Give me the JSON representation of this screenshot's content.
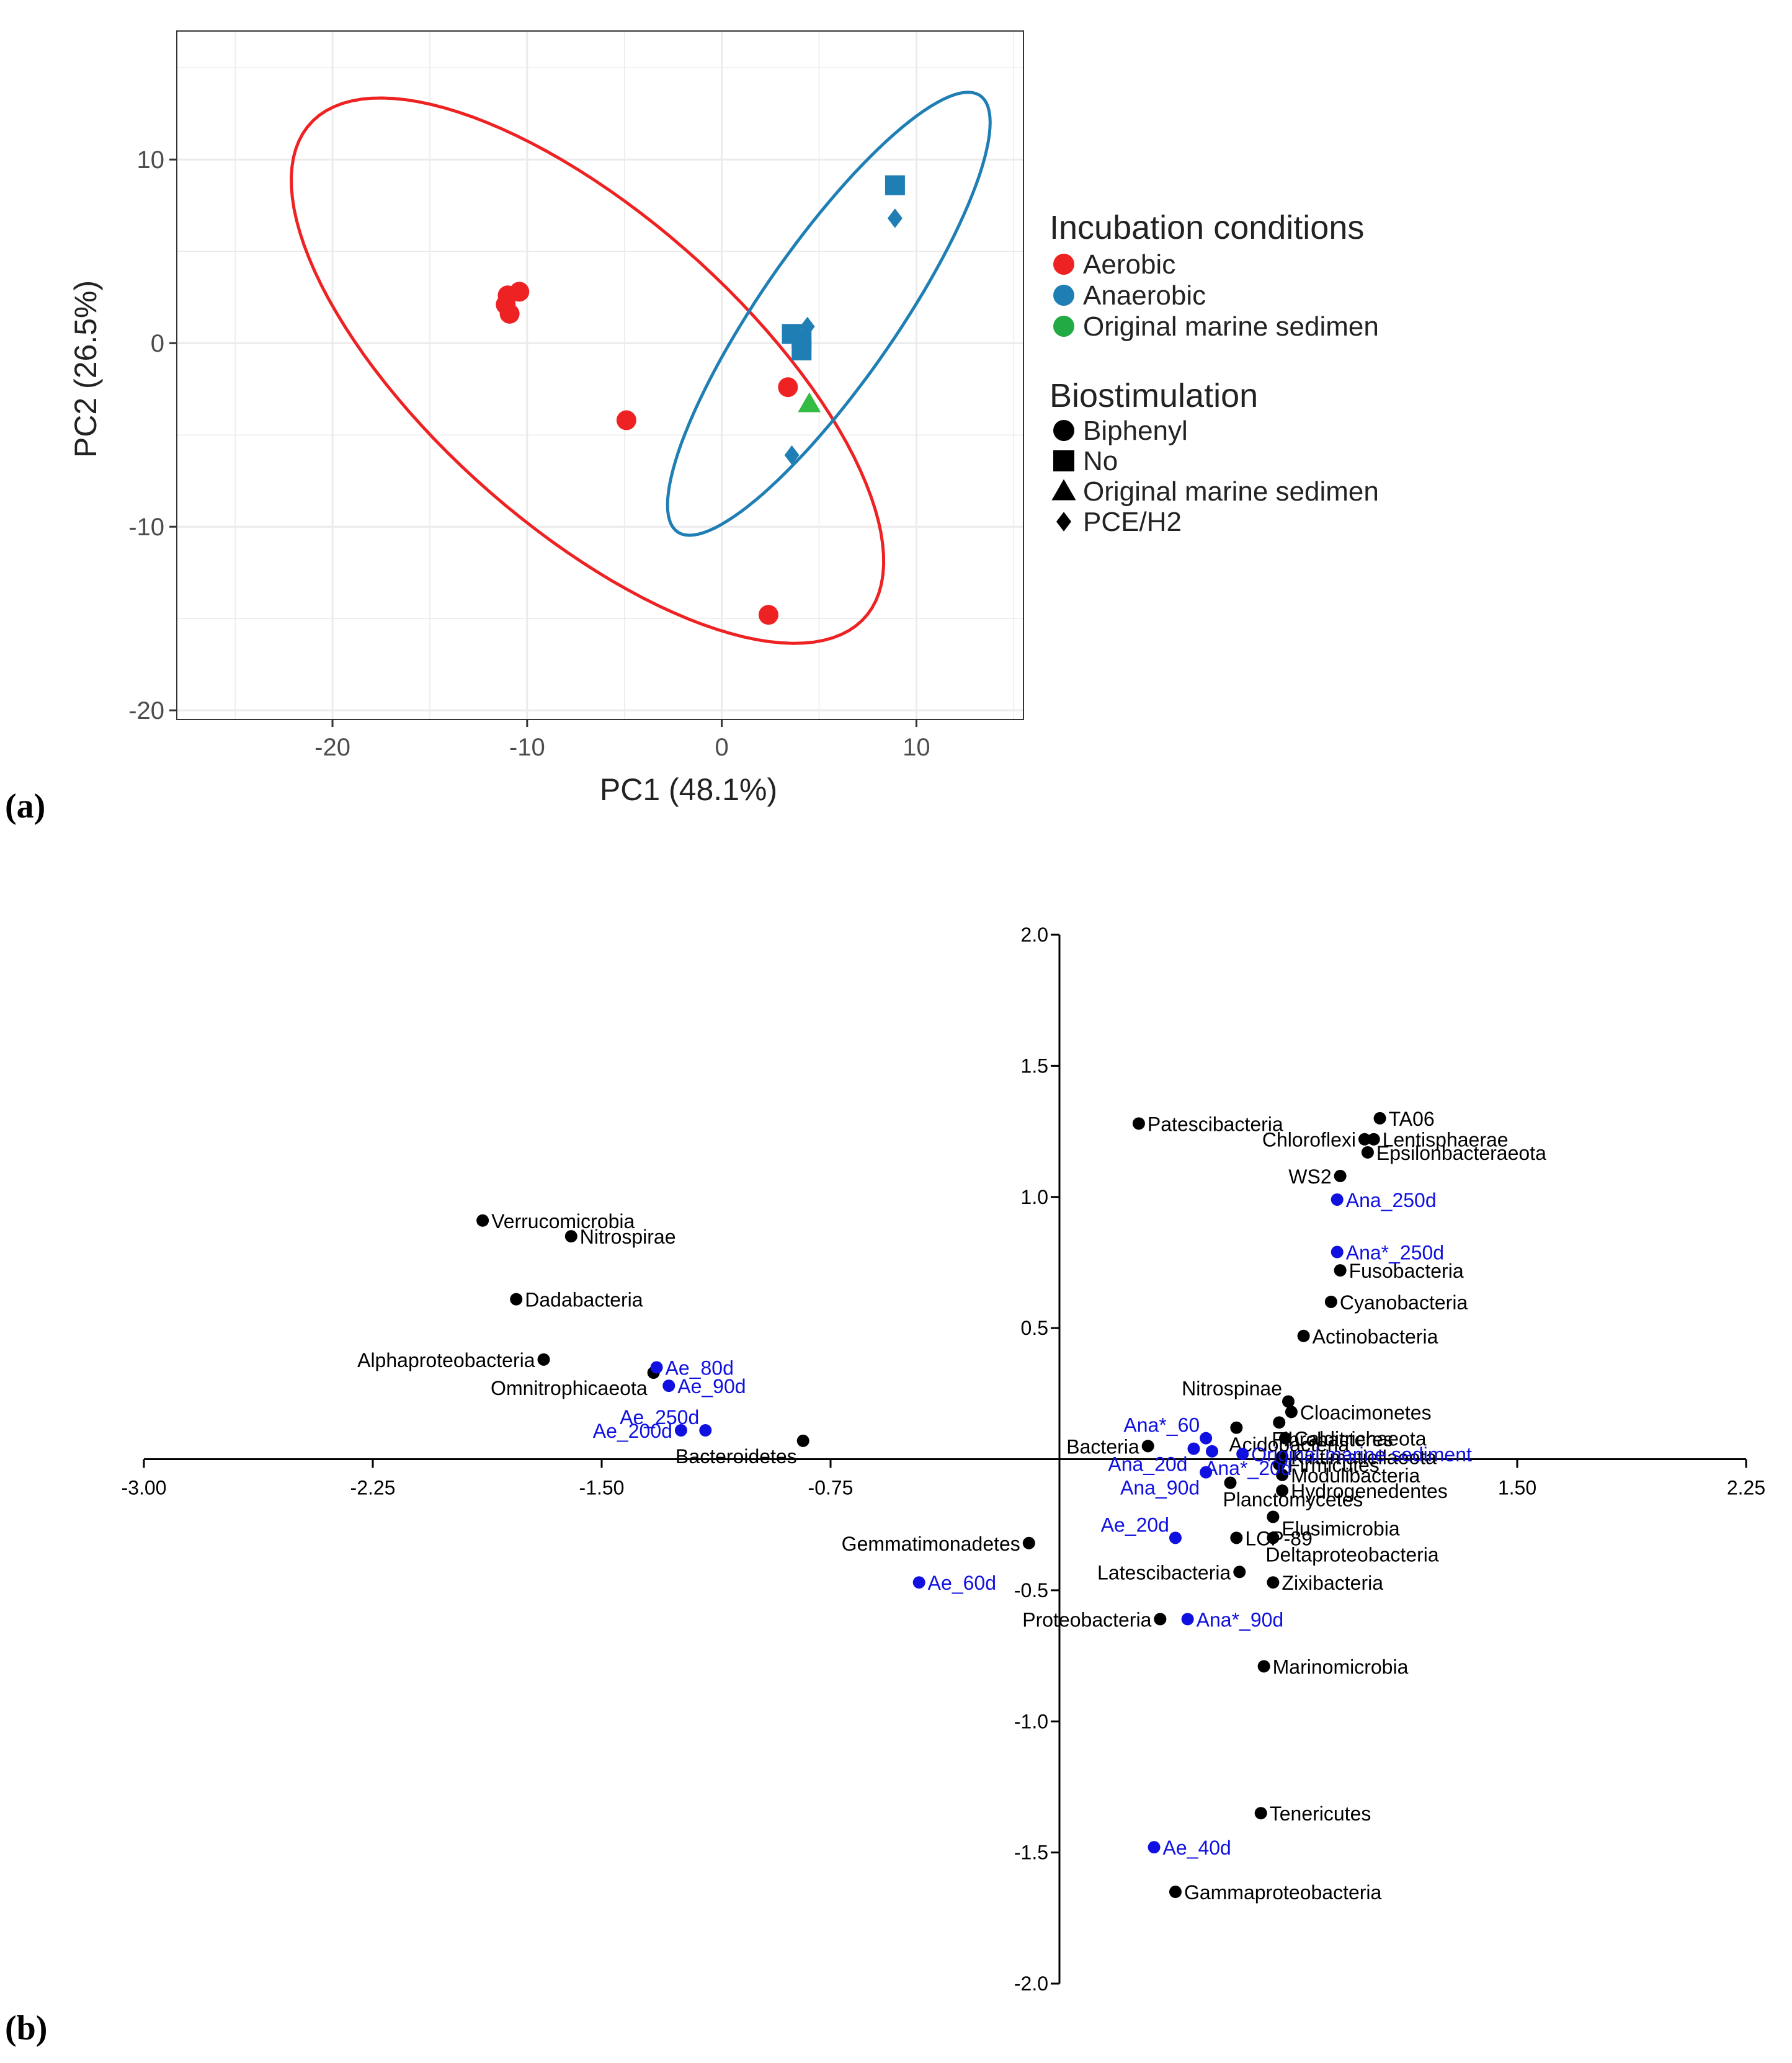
{
  "panel_labels": {
    "a": "(a)",
    "b": "(b)"
  },
  "colors": {
    "aerobic": "#EE2222",
    "anaerobic": "#1F7FB4",
    "original": "#33BB44",
    "legend_green": "#22AA44",
    "grid": "#EBEBEB",
    "biplot_black": "#000000",
    "biplot_blue": "#1010E0"
  },
  "chart_data": [
    {
      "type": "scatter",
      "xlabel": "PC1 (48.1%)",
      "ylabel": "PC2 (26.5%)",
      "xlim": [
        -28,
        15.5
      ],
      "ylim": [
        -20.5,
        17
      ],
      "xticks": [
        -20,
        -10,
        0,
        10
      ],
      "yticks": [
        10,
        0,
        -10,
        -20
      ],
      "xtick_labels": [
        "-20",
        "-10",
        "0",
        "10"
      ],
      "ytick_labels": [
        "10",
        "0",
        "-10",
        "-20"
      ],
      "grid": true,
      "legend": {
        "placement": "right",
        "color_title": "Incubation conditions",
        "color_entries": [
          {
            "label": "Aerobic",
            "key": "aerobic"
          },
          {
            "label": "Anaerobic",
            "key": "anaerobic"
          },
          {
            "label": "Original marine sedimen",
            "key": "legend_green"
          }
        ],
        "shape_title": "Biostimulation",
        "shape_entries": [
          {
            "label": "Biphenyl",
            "shape": "circle"
          },
          {
            "label": "No",
            "shape": "square"
          },
          {
            "label": "Original marine sedimen",
            "shape": "triangle"
          },
          {
            "label": "PCE/H2",
            "shape": "diamond"
          }
        ]
      },
      "ellipses": [
        {
          "group": "Aerobic",
          "key": "aerobic",
          "center": [
            -6.9,
            -1.5
          ],
          "semi_axes": [
            19.6,
            8.25
          ],
          "angle_deg": -44
        },
        {
          "group": "Anaerobic",
          "key": "anaerobic",
          "center": [
            5.5,
            1.6
          ],
          "semi_axes": [
            14.2,
            3.55
          ],
          "angle_deg": 57
        }
      ],
      "points": [
        {
          "x": -11.0,
          "y": 2.6,
          "group": "aerobic",
          "shape": "circle"
        },
        {
          "x": -10.4,
          "y": 2.8,
          "group": "aerobic",
          "shape": "circle"
        },
        {
          "x": -11.1,
          "y": 2.1,
          "group": "aerobic",
          "shape": "circle"
        },
        {
          "x": -10.9,
          "y": 1.6,
          "group": "aerobic",
          "shape": "circle"
        },
        {
          "x": -4.9,
          "y": -4.2,
          "group": "aerobic",
          "shape": "circle"
        },
        {
          "x": 3.4,
          "y": -2.4,
          "group": "aerobic",
          "shape": "circle"
        },
        {
          "x": 2.4,
          "y": -14.8,
          "group": "aerobic",
          "shape": "circle"
        },
        {
          "x": 8.9,
          "y": 8.6,
          "group": "anaerobic",
          "shape": "square"
        },
        {
          "x": 3.6,
          "y": 0.5,
          "group": "anaerobic",
          "shape": "square"
        },
        {
          "x": 4.1,
          "y": 0.2,
          "group": "anaerobic",
          "shape": "square"
        },
        {
          "x": 4.1,
          "y": -0.4,
          "group": "anaerobic",
          "shape": "square"
        },
        {
          "x": 8.9,
          "y": 6.8,
          "group": "anaerobic",
          "shape": "diamond"
        },
        {
          "x": 4.4,
          "y": 0.9,
          "group": "anaerobic",
          "shape": "diamond"
        },
        {
          "x": 3.6,
          "y": -6.1,
          "group": "anaerobic",
          "shape": "diamond"
        },
        {
          "x": 4.5,
          "y": -3.3,
          "group": "original",
          "shape": "triangle"
        }
      ]
    },
    {
      "type": "scatter",
      "subtype": "biplot",
      "xlim": [
        -3.0,
        2.25
      ],
      "ylim": [
        -2.0,
        2.0
      ],
      "xticks": [
        -3.0,
        -2.25,
        -1.5,
        -0.75,
        1.5,
        2.25
      ],
      "xtick_labels": [
        "-3.00",
        "-2.25",
        "-1.50",
        "-0.75",
        "1.50",
        "2.25"
      ],
      "yticks": [
        2.0,
        1.5,
        1.0,
        0.5,
        -0.5,
        -1.0,
        -1.5,
        -2.0
      ],
      "ytick_labels": [
        "2.0",
        "1.5",
        "1.0",
        "0.5",
        "-0.5",
        "-1.0",
        "-1.5",
        "-2.0"
      ],
      "taxa": [
        {
          "label": "Patescibacteria",
          "x": 0.26,
          "y": 1.28,
          "pos": "right"
        },
        {
          "label": "TA06",
          "x": 1.05,
          "y": 1.3,
          "pos": "right"
        },
        {
          "label": "Chloroflexi",
          "x": 1.0,
          "y": 1.22,
          "pos": "left"
        },
        {
          "label": "Lentisphaerae",
          "x": 1.03,
          "y": 1.22,
          "pos": "right"
        },
        {
          "label": "Epsilonbacteraeota",
          "x": 1.01,
          "y": 1.17,
          "pos": "right"
        },
        {
          "label": "WS2",
          "x": 0.92,
          "y": 1.08,
          "pos": "left"
        },
        {
          "label": "Verrucomicrobia",
          "x": -1.89,
          "y": 0.91,
          "pos": "right"
        },
        {
          "label": "Nitrospirae",
          "x": -1.6,
          "y": 0.85,
          "pos": "right"
        },
        {
          "label": "Fusobacteria",
          "x": 0.92,
          "y": 0.72,
          "pos": "right"
        },
        {
          "label": "Dadabacteria",
          "x": -1.78,
          "y": 0.61,
          "pos": "right"
        },
        {
          "label": "Cyanobacteria",
          "x": 0.89,
          "y": 0.6,
          "pos": "right"
        },
        {
          "label": "Actinobacteria",
          "x": 0.8,
          "y": 0.47,
          "pos": "right"
        },
        {
          "label": "Alphaproteobacteria",
          "x": -1.69,
          "y": 0.38,
          "pos": "left"
        },
        {
          "label": "Omnitrophicaeota",
          "x": -1.33,
          "y": 0.33,
          "pos": "left-below"
        },
        {
          "label": "Nitrospinae",
          "x": 0.75,
          "y": 0.22,
          "pos": "left-above"
        },
        {
          "label": "Cloacimonetes",
          "x": 0.76,
          "y": 0.18,
          "pos": "right"
        },
        {
          "label": "Bacteroidetes",
          "x": -0.84,
          "y": 0.07,
          "pos": "left-below"
        },
        {
          "label": "Bacteria",
          "x": 0.29,
          "y": 0.05,
          "pos": "left"
        },
        {
          "label": "Acidobacteria",
          "x": 0.58,
          "y": 0.12,
          "pos": "below"
        },
        {
          "label": "Fibrobacteres",
          "x": 0.72,
          "y": 0.14,
          "pos": "below"
        },
        {
          "label": "Calditrichaeota",
          "x": 0.74,
          "y": 0.08,
          "pos": "right"
        },
        {
          "label": "Kiritimatiellaeota",
          "x": 0.73,
          "y": 0.01,
          "pos": "right"
        },
        {
          "label": "Firmicutes",
          "x": 0.72,
          "y": -0.02,
          "pos": "right"
        },
        {
          "label": "Planctomycetes",
          "x": 0.56,
          "y": -0.09,
          "pos": "below"
        },
        {
          "label": "Modulibacteria",
          "x": 0.73,
          "y": -0.06,
          "pos": "right"
        },
        {
          "label": "Hydrogenedentes",
          "x": 0.73,
          "y": -0.12,
          "pos": "right"
        },
        {
          "label": "Elusimicrobia",
          "x": 0.7,
          "y": -0.22,
          "pos": "right-below"
        },
        {
          "label": "Gemmatimonadetes",
          "x": -0.1,
          "y": -0.32,
          "pos": "left"
        },
        {
          "label": "LCP-89",
          "x": 0.58,
          "y": -0.3,
          "pos": "right"
        },
        {
          "label": "Deltaproteobacteria",
          "x": 0.7,
          "y": -0.3,
          "pos": "below"
        },
        {
          "label": "Latescibacteria",
          "x": 0.59,
          "y": -0.43,
          "pos": "left"
        },
        {
          "label": "Zixibacteria",
          "x": 0.7,
          "y": -0.47,
          "pos": "right"
        },
        {
          "label": "Proteobacteria",
          "x": 0.33,
          "y": -0.61,
          "pos": "left"
        },
        {
          "label": "Marinomicrobia",
          "x": 0.67,
          "y": -0.79,
          "pos": "right"
        },
        {
          "label": "Tenericutes",
          "x": 0.66,
          "y": -1.35,
          "pos": "right"
        },
        {
          "label": "Gammaproteobacteria",
          "x": 0.38,
          "y": -1.65,
          "pos": "right"
        }
      ],
      "samples": [
        {
          "label": "Ana_250d",
          "x": 0.91,
          "y": 0.99,
          "pos": "right"
        },
        {
          "label": "Ana*_250d",
          "x": 0.91,
          "y": 0.79,
          "pos": "right"
        },
        {
          "label": "Ae_80d",
          "x": -1.32,
          "y": 0.35,
          "pos": "right"
        },
        {
          "label": "Ae_90d",
          "x": -1.28,
          "y": 0.28,
          "pos": "right"
        },
        {
          "label": "Ae_250d",
          "x": -1.16,
          "y": 0.11,
          "pos": "left-above"
        },
        {
          "label": "Ae_200d",
          "x": -1.24,
          "y": 0.11,
          "pos": "left"
        },
        {
          "label": "Ana*_60",
          "x": 0.48,
          "y": 0.08,
          "pos": "left-above"
        },
        {
          "label": "Ana_20d",
          "x": 0.44,
          "y": 0.04,
          "pos": "left-below"
        },
        {
          "label": "Ana*_20d",
          "x": 0.5,
          "y": 0.03,
          "pos": "below"
        },
        {
          "label": "Original marine sediment",
          "x": 0.6,
          "y": 0.02,
          "pos": "right"
        },
        {
          "label": "Ana_90d",
          "x": 0.48,
          "y": -0.05,
          "pos": "left-below"
        },
        {
          "label": "Ae_20d",
          "x": 0.38,
          "y": -0.3,
          "pos": "left-above"
        },
        {
          "label": "Ae_60d",
          "x": -0.46,
          "y": -0.47,
          "pos": "right"
        },
        {
          "label": "Ana*_90d",
          "x": 0.42,
          "y": -0.61,
          "pos": "right"
        },
        {
          "label": "Ae_40d",
          "x": 0.31,
          "y": -1.48,
          "pos": "right"
        }
      ]
    }
  ]
}
